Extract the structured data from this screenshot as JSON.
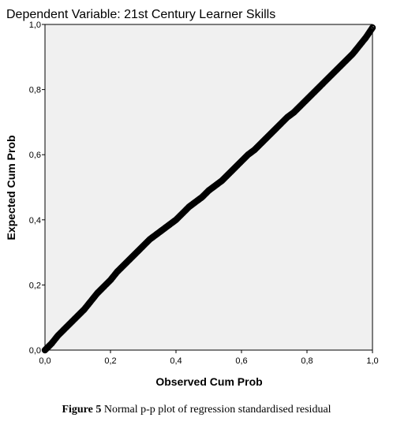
{
  "chart_data": {
    "type": "scatter",
    "title": "Dependent Variable: 21st Century Learner Skills",
    "xlabel": "Observed Cum Prob",
    "ylabel": "Expected Cum Prob",
    "xlim": [
      0,
      1
    ],
    "ylim": [
      0,
      1
    ],
    "xticks": [
      "0,0",
      "0,2",
      "0,4",
      "0,6",
      "0,8",
      "1,0"
    ],
    "yticks": [
      "0,0",
      "0,2",
      "0,4",
      "0,6",
      "0,8",
      "1,0"
    ],
    "grid": false,
    "background_color": "#f0f0f0",
    "point_color": "#000000",
    "points_x": [
      0.0,
      0.02,
      0.04,
      0.06,
      0.08,
      0.1,
      0.12,
      0.14,
      0.16,
      0.18,
      0.2,
      0.22,
      0.24,
      0.26,
      0.28,
      0.3,
      0.32,
      0.34,
      0.36,
      0.38,
      0.4,
      0.42,
      0.44,
      0.46,
      0.48,
      0.5,
      0.52,
      0.54,
      0.56,
      0.58,
      0.6,
      0.62,
      0.64,
      0.66,
      0.68,
      0.7,
      0.72,
      0.74,
      0.76,
      0.78,
      0.8,
      0.82,
      0.84,
      0.86,
      0.88,
      0.9,
      0.92,
      0.94,
      0.96,
      0.98,
      1.0
    ],
    "points_y": [
      0.0,
      0.02,
      0.045,
      0.065,
      0.085,
      0.105,
      0.125,
      0.15,
      0.175,
      0.195,
      0.215,
      0.24,
      0.26,
      0.28,
      0.3,
      0.32,
      0.34,
      0.355,
      0.37,
      0.385,
      0.4,
      0.42,
      0.44,
      0.455,
      0.47,
      0.49,
      0.505,
      0.52,
      0.54,
      0.56,
      0.58,
      0.6,
      0.615,
      0.635,
      0.655,
      0.675,
      0.695,
      0.715,
      0.73,
      0.75,
      0.77,
      0.79,
      0.81,
      0.83,
      0.85,
      0.87,
      0.89,
      0.91,
      0.935,
      0.96,
      0.99
    ]
  },
  "caption": {
    "label": "Figure 5",
    "text": " Normal p-p plot of regression standardised residual"
  }
}
